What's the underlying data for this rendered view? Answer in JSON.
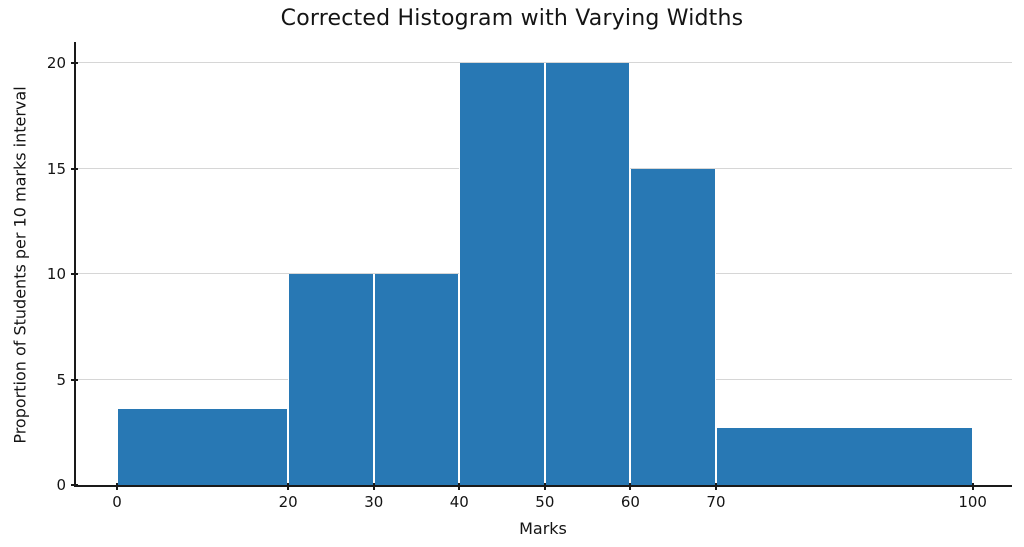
{
  "chart_data": {
    "type": "bar",
    "subtype": "histogram_varying_widths",
    "title": "Corrected Histogram with Varying Widths",
    "xlabel": "Marks",
    "ylabel": "Proportion of Students per 10 marks interval",
    "bins": [
      {
        "x0": 0,
        "x1": 20,
        "height": 3.6
      },
      {
        "x0": 20,
        "x1": 30,
        "height": 10
      },
      {
        "x0": 30,
        "x1": 40,
        "height": 10
      },
      {
        "x0": 40,
        "x1": 50,
        "height": 20
      },
      {
        "x0": 50,
        "x1": 60,
        "height": 20
      },
      {
        "x0": 60,
        "x1": 70,
        "height": 15
      },
      {
        "x0": 70,
        "x1": 100,
        "height": 2.7
      }
    ],
    "x_ticks": [
      0,
      20,
      30,
      40,
      50,
      60,
      70,
      100
    ],
    "y_ticks": [
      0,
      5,
      10,
      15,
      20
    ],
    "xlim": [
      -4.8,
      104.6
    ],
    "ylim": [
      0,
      21
    ],
    "grid": "horizontal gridlines at y ticks, drawn behind bars",
    "legend_position": "none",
    "colors": {
      "bar_fill": "#2878b4",
      "bar_edge": "#ffffff",
      "grid": "#d6d6d6",
      "axis": "#1a1a1a",
      "text": "#141414",
      "background": "#ffffff"
    }
  }
}
